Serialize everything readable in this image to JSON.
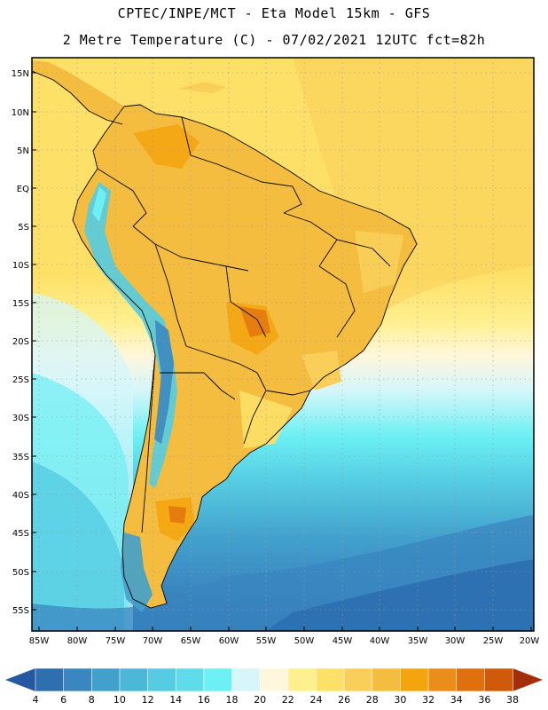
{
  "header": {
    "line1": "CPTEC/INPE/MCT -  Eta Model 15km - GFS",
    "line2": "2 Metre Temperature (C) - 07/02/2021 12UTC fct=82h"
  },
  "map": {
    "lat_labels": [
      "15N",
      "10N",
      "5N",
      "EQ",
      "5S",
      "10S",
      "15S",
      "20S",
      "25S",
      "30S",
      "35S",
      "40S",
      "45S",
      "50S",
      "55S"
    ],
    "lon_labels": [
      "85W",
      "80W",
      "75W",
      "70W",
      "65W",
      "60W",
      "55W",
      "50W",
      "45W",
      "40W",
      "35W",
      "30W",
      "25W",
      "20W"
    ]
  },
  "colorbar": {
    "labels": [
      "4",
      "6",
      "8",
      "10",
      "12",
      "14",
      "16",
      "18",
      "20",
      "22",
      "24",
      "26",
      "28",
      "30",
      "32",
      "34",
      "36",
      "38"
    ],
    "colors": [
      "#2e6fb0",
      "#3a86c0",
      "#42a0cc",
      "#4cb8d8",
      "#55cce2",
      "#5fdcea",
      "#6cf0f4",
      "#d6f6fa",
      "#fff7dc",
      "#fff08e",
      "#fde068",
      "#f9cf5a",
      "#f5bd3f",
      "#f4a50e",
      "#ec8c1a",
      "#e0700e",
      "#cf5a0a",
      "#bf3c08"
    ],
    "low_color": "#2458a0",
    "high_color": "#a52e0a"
  }
}
